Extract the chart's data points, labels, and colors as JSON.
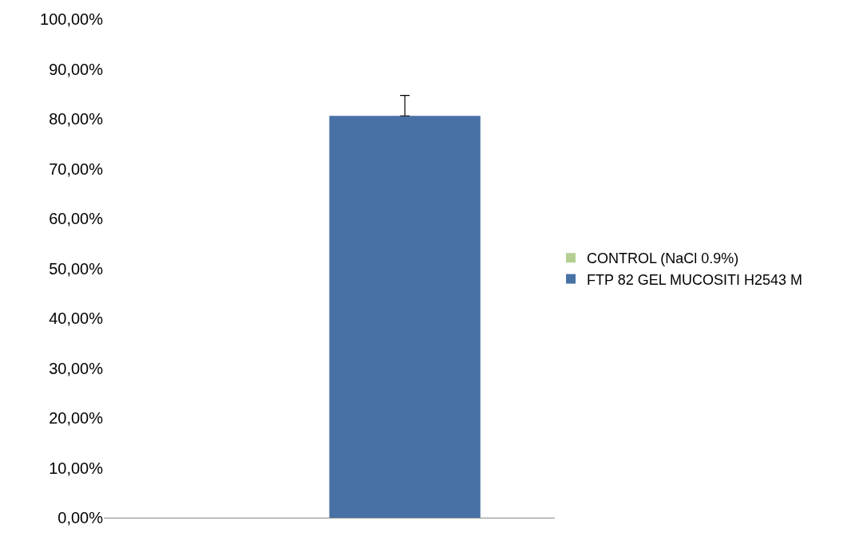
{
  "chart_data": {
    "type": "bar",
    "categories": [
      null
    ],
    "series": [
      {
        "name": "CONTROL (NaCl 0.9%)",
        "color": "#b5cf93",
        "values": [
          0
        ],
        "errors": [
          null
        ]
      },
      {
        "name": "FTP 82 GEL MUCOSITI H2543 M",
        "color": "#4872a6",
        "values": [
          80.6
        ],
        "errors": [
          [
            80.6,
            84.7
          ]
        ]
      }
    ],
    "ylim": [
      0,
      100
    ],
    "yticks": [
      {
        "value": 0,
        "label": "0,00%"
      },
      {
        "value": 10,
        "label": "10,00%"
      },
      {
        "value": 20,
        "label": "20,00%"
      },
      {
        "value": 30,
        "label": "30,00%"
      },
      {
        "value": 40,
        "label": "40,00%"
      },
      {
        "value": 50,
        "label": "50,00%"
      },
      {
        "value": 60,
        "label": "60,00%"
      },
      {
        "value": 70,
        "label": "70,00%"
      },
      {
        "value": 80,
        "label": "80,00%"
      },
      {
        "value": 90,
        "label": "90,00%"
      },
      {
        "value": 100,
        "label": "100,00%"
      }
    ],
    "legend": "right"
  }
}
